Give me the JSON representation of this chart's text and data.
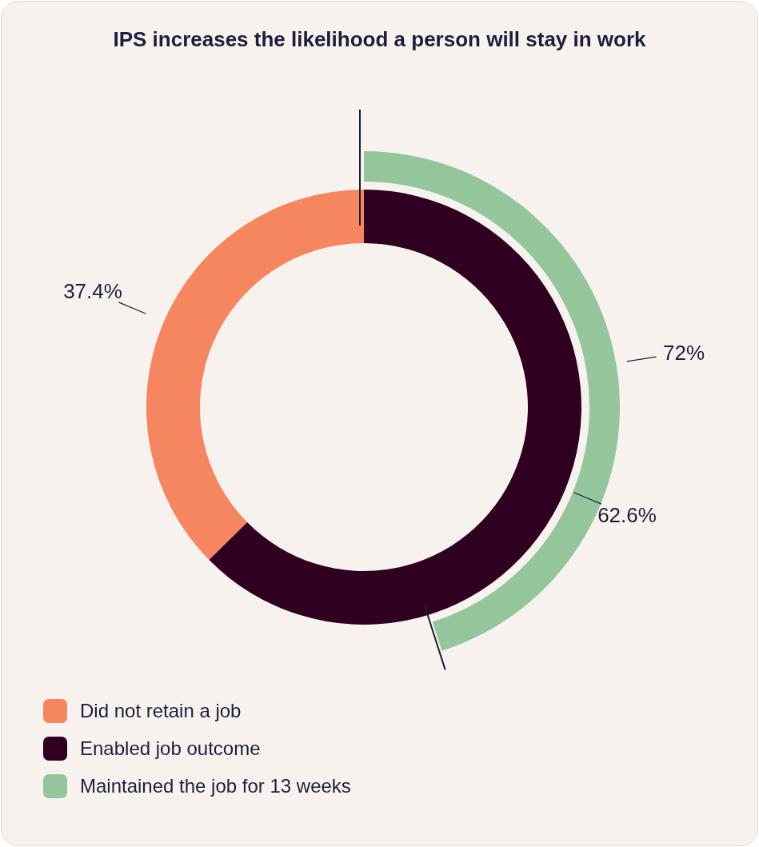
{
  "chart_data": {
    "type": "donut",
    "title": "IPS increases the likelihood a person will stay in work",
    "categories": [
      "Did not retain a job",
      "Enabled job outcome",
      "Maintained the job for 13 weeks"
    ],
    "colors": [
      "#f58660",
      "#300020",
      "#94c59b"
    ],
    "series": [
      {
        "values": [
          37.4,
          62.6,
          null
        ],
        "value_labels": [
          "37.4%",
          "62.6%",
          null
        ]
      },
      {
        "values": [
          null,
          null,
          72
        ],
        "value_labels": [
          null,
          null,
          "72%"
        ]
      }
    ],
    "legend": "bottom left"
  }
}
